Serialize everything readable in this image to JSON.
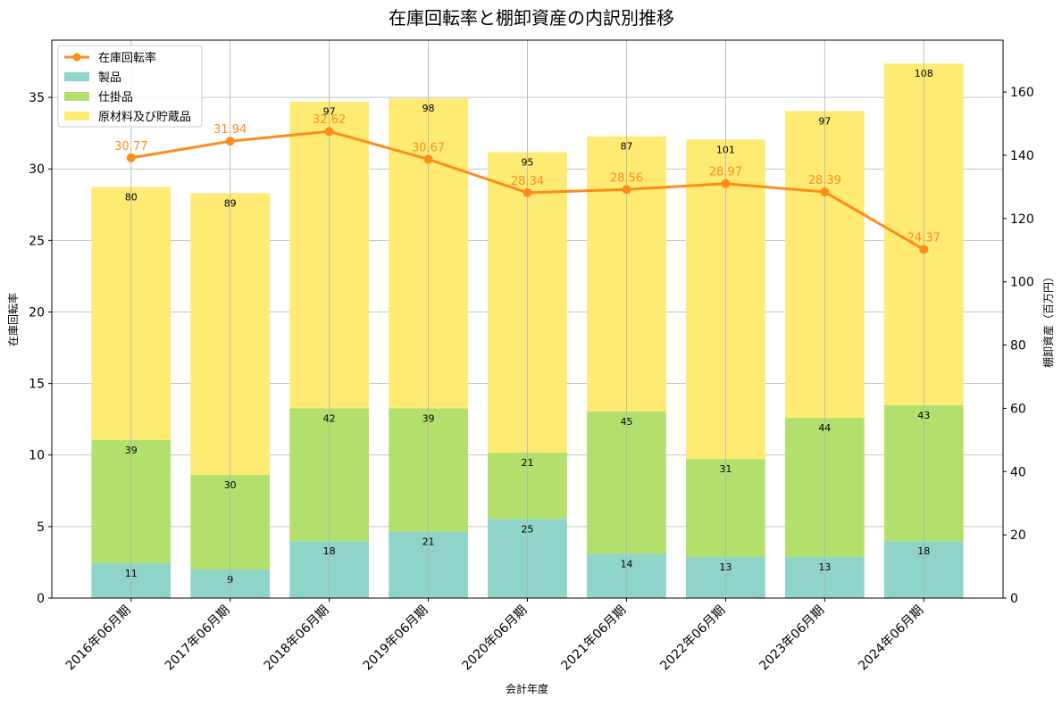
{
  "chart_data": {
    "type": "bar",
    "title": "在庫回転率と棚卸資産の内訳別推移",
    "xlabel": "会計年度",
    "ylabel_left": "在庫回転率",
    "ylabel_right": "棚卸資産（百万円）",
    "ylim_left": [
      0,
      39
    ],
    "ylim_right": [
      0,
      176.4
    ],
    "yticks_left": [
      0,
      5,
      10,
      15,
      20,
      25,
      30,
      35
    ],
    "yticks_right": [
      0,
      20,
      40,
      60,
      80,
      100,
      120,
      140,
      160
    ],
    "grid": true,
    "legend_position": "top-left",
    "categories": [
      "2016年06月期",
      "2017年06月期",
      "2018年06月期",
      "2019年06月期",
      "2020年06月期",
      "2021年06月期",
      "2022年06月期",
      "2023年06月期",
      "2024年06月期"
    ],
    "series": [
      {
        "name": "製品",
        "type": "bar",
        "axis": "right",
        "color": "#8fd4c8",
        "values": [
          11,
          9,
          18,
          21,
          25,
          14,
          13,
          13,
          18
        ]
      },
      {
        "name": "仕掛品",
        "type": "bar",
        "axis": "right",
        "color": "#b3df6c",
        "values": [
          39,
          30,
          42,
          39,
          21,
          45,
          31,
          44,
          43
        ]
      },
      {
        "name": "原材料及び貯蔵品",
        "type": "bar",
        "axis": "right",
        "color": "#ffeb73",
        "values": [
          80,
          89,
          97,
          98,
          95,
          87,
          101,
          97,
          108
        ]
      },
      {
        "name": "在庫回転率",
        "type": "line",
        "axis": "left",
        "color": "#ff8c1a",
        "values": [
          30.77,
          31.94,
          32.62,
          30.67,
          28.34,
          28.56,
          28.97,
          28.39,
          24.37
        ]
      }
    ],
    "legend": [
      "在庫回転率",
      "製品",
      "仕掛品",
      "原材料及び貯蔵品"
    ]
  }
}
